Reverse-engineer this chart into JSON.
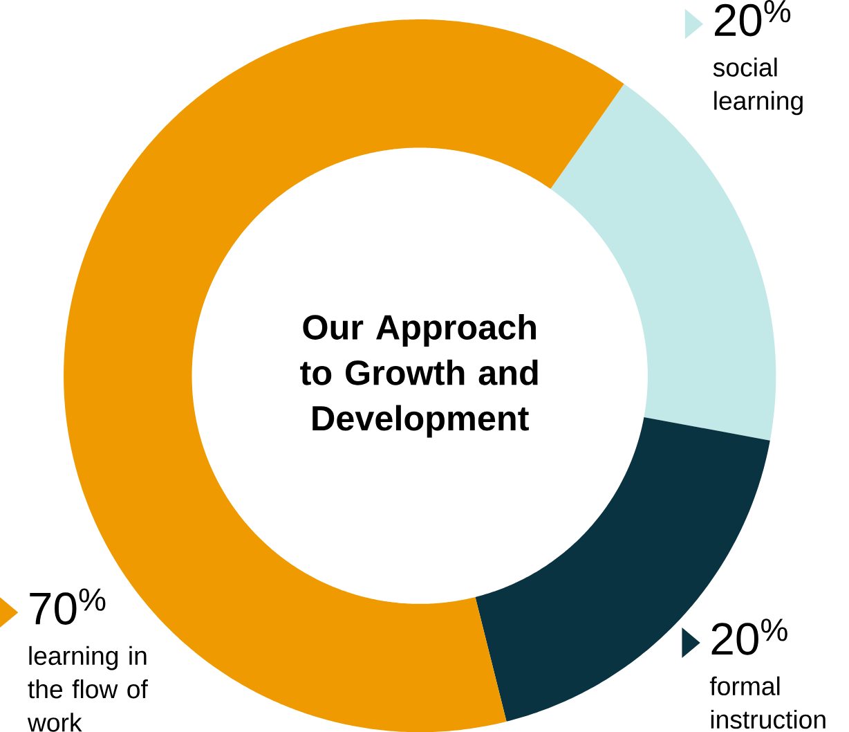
{
  "chart_data": {
    "type": "donut",
    "title": "Our Approach to Growth and Development",
    "categories": [
      "social learning",
      "formal instruction",
      "learning in the flow of work"
    ],
    "values": [
      20,
      20,
      70
    ],
    "value_labels": [
      "20$^{%}$",
      "20$^{%}$",
      "70$^{%}$"
    ],
    "colors": [
      "#c2e8e8",
      "#0a3341",
      "#ee9a00"
    ],
    "legend": "right"
  }
}
